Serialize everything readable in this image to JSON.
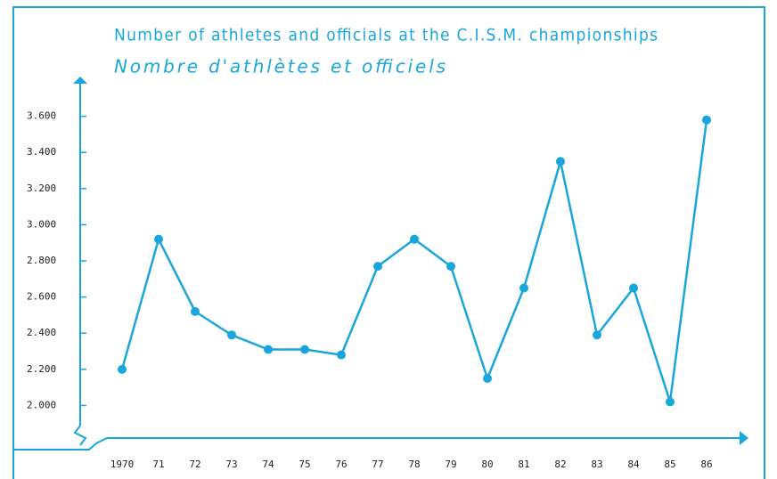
{
  "chart_data": {
    "type": "line",
    "title": "Number of athletes and officials at the C.I.S.M. championships",
    "subtitle": "Nombre d'athlètes et officiels",
    "categories": [
      "1970",
      "71",
      "72",
      "73",
      "74",
      "75",
      "76",
      "77",
      "78",
      "79",
      "80",
      "81",
      "82",
      "83",
      "84",
      "85",
      "86"
    ],
    "values": [
      2200,
      2920,
      2520,
      2390,
      2310,
      2310,
      2280,
      2770,
      2920,
      2770,
      2150,
      2650,
      3350,
      2390,
      2650,
      2020,
      3580
    ],
    "color": "#19a6dc",
    "ylim": [
      1820,
      3800
    ],
    "yticks": [
      {
        "value": 2000,
        "label": "2.000"
      },
      {
        "value": 2200,
        "label": "2.200"
      },
      {
        "value": 2400,
        "label": "2.400"
      },
      {
        "value": 2600,
        "label": "2.600"
      },
      {
        "value": 2800,
        "label": "2.800"
      },
      {
        "value": 3000,
        "label": "3.000"
      },
      {
        "value": 3200,
        "label": "3.200"
      },
      {
        "value": 3400,
        "label": "3.400"
      },
      {
        "value": 3600,
        "label": "3.600"
      }
    ]
  }
}
